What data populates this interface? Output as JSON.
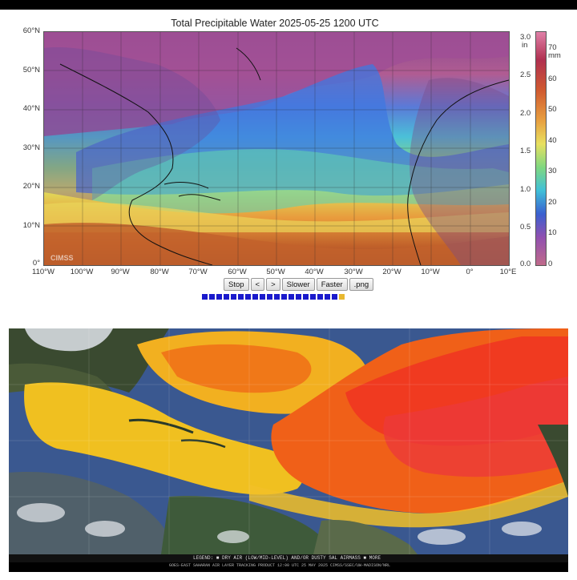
{
  "panel1": {
    "title": "Total Precipitable Water  2025-05-25 1200 UTC",
    "watermark": "CIMSS",
    "lat_labels": [
      "60°N",
      "50°N",
      "40°N",
      "30°N",
      "20°N",
      "10°N",
      "0°"
    ],
    "lon_labels": [
      "110°W",
      "100°W",
      "90°W",
      "80°W",
      "70°W",
      "60°W",
      "50°W",
      "40°W",
      "30°W",
      "20°W",
      "10°W",
      "0°",
      "10°E"
    ],
    "colorbar": {
      "unit_in": "in",
      "unit_mm": "mm",
      "in_ticks": [
        "3.0",
        "2.5",
        "2.0",
        "1.5",
        "1.0",
        "0.5",
        "0.0"
      ],
      "mm_ticks": [
        "70",
        "60",
        "50",
        "40",
        "30",
        "20",
        "10",
        "0"
      ],
      "range_in": [
        0,
        3.0
      ],
      "range_mm": [
        0,
        76.2
      ]
    },
    "controls": {
      "stop": "Stop",
      "prev": "<",
      "next": ">",
      "slower": "Slower",
      "faster": "Faster",
      "png": ".png"
    },
    "frames": {
      "count": 20,
      "current": 19
    }
  },
  "panel2": {
    "legend_text": "LEGEND: ■ DRY AIR (LOW/MID-LEVEL) AND/OR DUSTY SAL AIRMASS ■ MORE",
    "footer_text": "GOES-EAST  SAHARAN AIR LAYER TRACKING PRODUCT  12:00 UTC 25 MAY 2025  CIMSS/SSEC/UW-MADISON/NRL"
  }
}
